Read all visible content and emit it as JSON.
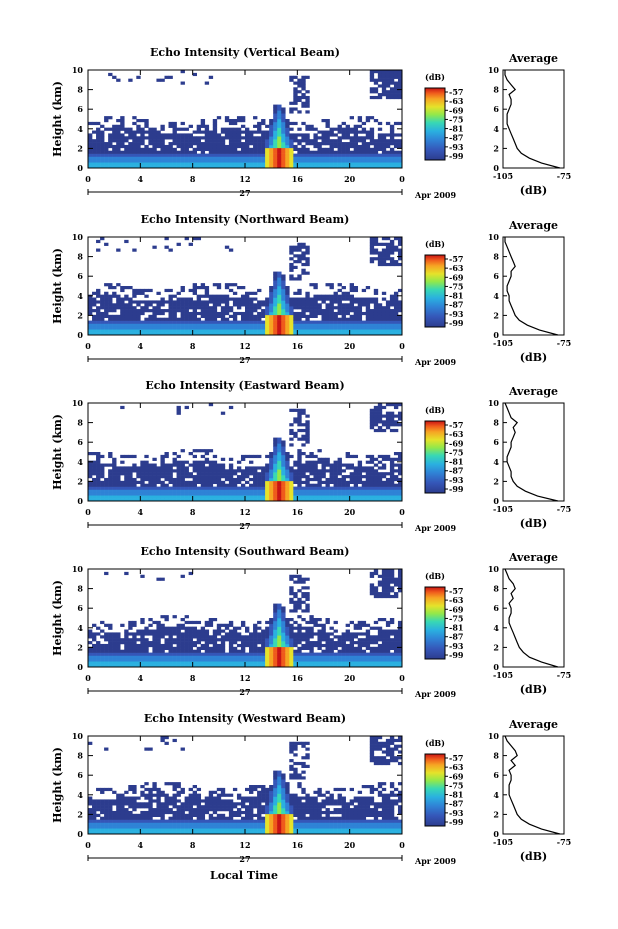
{
  "figure": {
    "xlabel": "Local Time",
    "date_label": "Apr 2009",
    "day_label": "27"
  },
  "colors": {
    "scale": [
      "#2c3c8e",
      "#3556b8",
      "#2f83d6",
      "#2ab0e0",
      "#38d8b4",
      "#92e84a",
      "#e6e22a",
      "#f6a423",
      "#ef5a1c",
      "#c81414"
    ]
  },
  "chart_data": [
    {
      "type": "heatmap",
      "title": "Echo Intensity (Vertical Beam)",
      "ylabel": "Height (km)",
      "x_ticks": [
        "0",
        "4",
        "8",
        "12",
        "16",
        "20",
        "0"
      ],
      "xlim": [
        0,
        24
      ],
      "y_ticks": [
        "0",
        "2",
        "4",
        "6",
        "8",
        "10"
      ],
      "ylim": [
        0,
        10
      ],
      "colorbar": {
        "unit": "(dB)",
        "ticks": [
          "-57",
          "-63",
          "-69",
          "-75",
          "-81",
          "-87",
          "-93",
          "-99"
        ]
      },
      "profile": {
        "title": "Average",
        "xlabel": "(dB)",
        "x_ticks": [
          "-105",
          "-75"
        ],
        "xlim": [
          -105,
          -75
        ],
        "y_ticks": [
          "0",
          "2",
          "4",
          "6",
          "8",
          "10"
        ],
        "heights": [
          0,
          0.5,
          1,
          1.5,
          2,
          2.5,
          3,
          3.5,
          4,
          4.5,
          5,
          5.5,
          6,
          6.5,
          7,
          7.5,
          8,
          8.5,
          9,
          9.5,
          10
        ],
        "values": [
          -77,
          -86,
          -92,
          -96,
          -98,
          -99,
          -100,
          -101,
          -102,
          -103,
          -103,
          -103,
          -102,
          -101,
          -101,
          -102,
          -99,
          -101,
          -103,
          -104,
          -104
        ]
      }
    },
    {
      "type": "heatmap",
      "title": "Echo Intensity (Northward Beam)",
      "ylabel": "Height (km)",
      "x_ticks": [
        "0",
        "4",
        "8",
        "12",
        "16",
        "20",
        "0"
      ],
      "xlim": [
        0,
        24
      ],
      "y_ticks": [
        "0",
        "2",
        "4",
        "6",
        "8",
        "10"
      ],
      "ylim": [
        0,
        10
      ],
      "colorbar": {
        "unit": "(dB)",
        "ticks": [
          "-57",
          "-63",
          "-69",
          "-75",
          "-81",
          "-87",
          "-93",
          "-99"
        ]
      },
      "profile": {
        "title": "Average",
        "xlabel": "(dB)",
        "x_ticks": [
          "-105",
          "-75"
        ],
        "xlim": [
          -105,
          -75
        ],
        "y_ticks": [
          "0",
          "2",
          "4",
          "6",
          "8",
          "10"
        ],
        "heights": [
          0,
          0.5,
          1,
          1.5,
          2,
          2.5,
          3,
          3.5,
          4,
          4.5,
          5,
          5.5,
          6,
          6.5,
          7,
          7.5,
          8,
          8.5,
          9,
          9.5,
          10
        ],
        "values": [
          -78,
          -87,
          -93,
          -97,
          -99,
          -100,
          -101,
          -102,
          -102,
          -103,
          -103,
          -102,
          -101,
          -101,
          -99,
          -100,
          -101,
          -102,
          -103,
          -104,
          -104
        ]
      }
    },
    {
      "type": "heatmap",
      "title": "Echo Intensity (Eastward Beam)",
      "ylabel": "Height (km)",
      "x_ticks": [
        "0",
        "4",
        "8",
        "12",
        "16",
        "20",
        "0"
      ],
      "xlim": [
        0,
        24
      ],
      "y_ticks": [
        "0",
        "2",
        "4",
        "6",
        "8",
        "10"
      ],
      "ylim": [
        0,
        10
      ],
      "colorbar": {
        "unit": "(dB)",
        "ticks": [
          "-57",
          "-63",
          "-69",
          "-75",
          "-81",
          "-87",
          "-93",
          "-99"
        ]
      },
      "profile": {
        "title": "Average",
        "xlabel": "(dB)",
        "x_ticks": [
          "-105",
          "-75"
        ],
        "xlim": [
          -105,
          -75
        ],
        "y_ticks": [
          "0",
          "2",
          "4",
          "6",
          "8",
          "10"
        ],
        "heights": [
          0,
          0.5,
          1,
          1.5,
          2,
          2.5,
          3,
          3.5,
          4,
          4.5,
          5,
          5.5,
          6,
          6.5,
          7,
          7.5,
          8,
          8.5,
          9,
          9.5,
          10
        ],
        "values": [
          -78,
          -88,
          -94,
          -98,
          -100,
          -101,
          -101,
          -102,
          -103,
          -103,
          -102,
          -101,
          -101,
          -100,
          -99,
          -100,
          -98,
          -101,
          -102,
          -103,
          -104
        ]
      }
    },
    {
      "type": "heatmap",
      "title": "Echo Intensity (Southward Beam)",
      "ylabel": "Height (km)",
      "x_ticks": [
        "0",
        "4",
        "8",
        "12",
        "16",
        "20",
        "0"
      ],
      "xlim": [
        0,
        24
      ],
      "y_ticks": [
        "0",
        "2",
        "4",
        "6",
        "8",
        "10"
      ],
      "ylim": [
        0,
        10
      ],
      "colorbar": {
        "unit": "(dB)",
        "ticks": [
          "-57",
          "-63",
          "-69",
          "-75",
          "-81",
          "-87",
          "-93",
          "-99"
        ]
      },
      "profile": {
        "title": "Average",
        "xlabel": "(dB)",
        "x_ticks": [
          "-105",
          "-75"
        ],
        "xlim": [
          -105,
          -75
        ],
        "y_ticks": [
          "0",
          "2",
          "4",
          "6",
          "8",
          "10"
        ],
        "heights": [
          0,
          0.5,
          1,
          1.5,
          2,
          2.5,
          3,
          3.5,
          4,
          4.5,
          5,
          5.5,
          6,
          6.5,
          7,
          7.5,
          8,
          8.5,
          9,
          9.5,
          10
        ],
        "values": [
          -78,
          -86,
          -92,
          -95,
          -97,
          -98,
          -99,
          -100,
          -101,
          -102,
          -102,
          -101,
          -101,
          -102,
          -100,
          -101,
          -99,
          -100,
          -102,
          -103,
          -104
        ]
      }
    },
    {
      "type": "heatmap",
      "title": "Echo Intensity (Westward Beam)",
      "ylabel": "Height (km)",
      "x_ticks": [
        "0",
        "4",
        "8",
        "12",
        "16",
        "20",
        "0"
      ],
      "xlim": [
        0,
        24
      ],
      "y_ticks": [
        "0",
        "2",
        "4",
        "6",
        "8",
        "10"
      ],
      "ylim": [
        0,
        10
      ],
      "colorbar": {
        "unit": "(dB)",
        "ticks": [
          "-57",
          "-63",
          "-69",
          "-75",
          "-81",
          "-87",
          "-93",
          "-99"
        ]
      },
      "profile": {
        "title": "Average",
        "xlabel": "(dB)",
        "x_ticks": [
          "-105",
          "-75"
        ],
        "xlim": [
          -105,
          -75
        ],
        "y_ticks": [
          "0",
          "2",
          "4",
          "6",
          "8",
          "10"
        ],
        "heights": [
          0,
          0.5,
          1,
          1.5,
          2,
          2.5,
          3,
          3.5,
          4,
          4.5,
          5,
          5.5,
          6,
          6.5,
          7,
          7.5,
          8,
          8.5,
          9,
          9.5,
          10
        ],
        "values": [
          -77,
          -86,
          -92,
          -96,
          -98,
          -99,
          -100,
          -101,
          -102,
          -102,
          -102,
          -101,
          -101,
          -102,
          -99,
          -101,
          -98,
          -99,
          -101,
          -103,
          -104
        ]
      }
    }
  ]
}
